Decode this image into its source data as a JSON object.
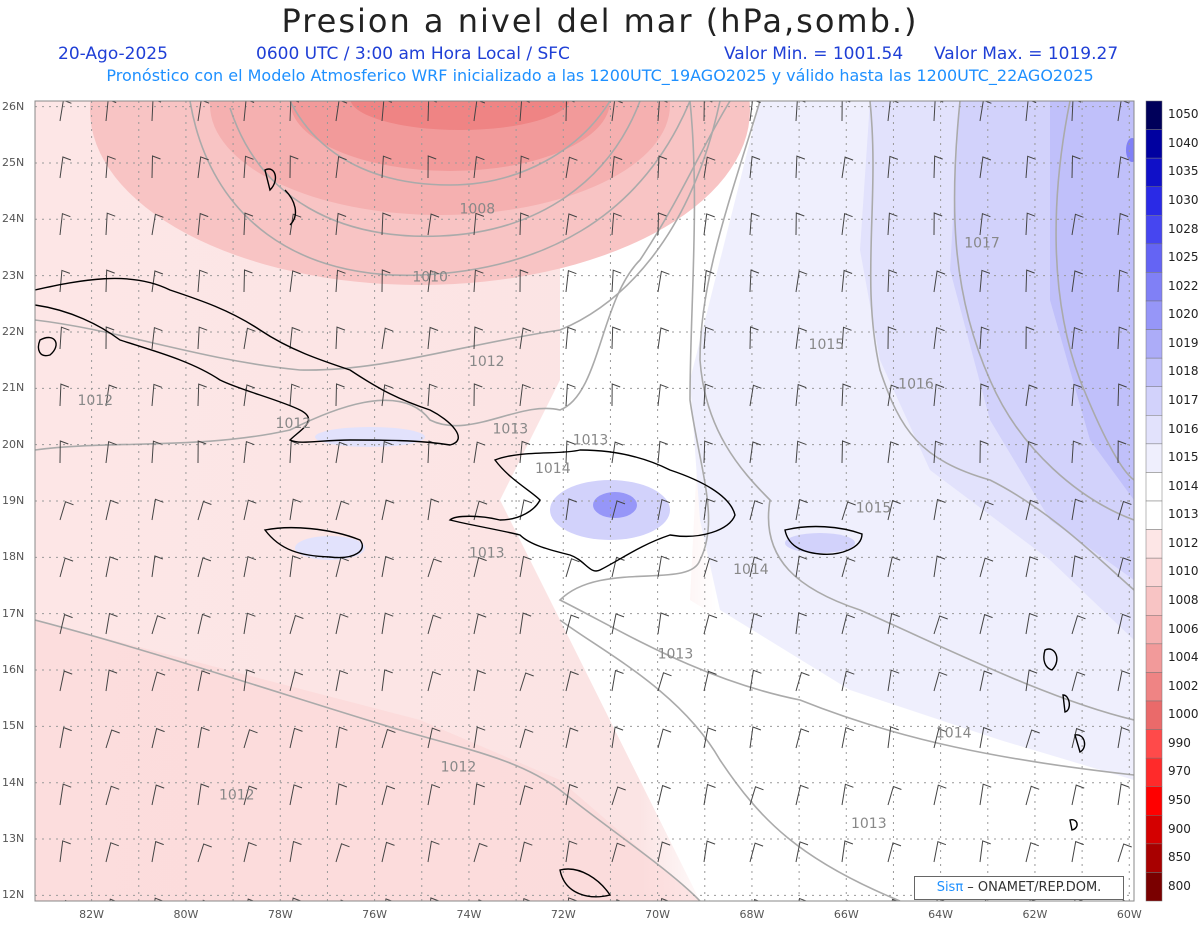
{
  "header": {
    "title": "Presion a nivel del mar (hPa,somb.)",
    "date": "20-Ago-2025",
    "time": "0600 UTC / 3:00 am Hora Local / SFC",
    "min": "Valor Min. = 1001.54",
    "max": "Valor Max. = 1019.27",
    "model_line": "Pronóstico con el Modelo Atmosferico WRF inicializado a las 1200UTC_19AGO2025 y válido hasta las  1200UTC_22AGO2025"
  },
  "axes": {
    "lat_labels": [
      "26N",
      "25N",
      "24N",
      "23N",
      "22N",
      "21N",
      "20N",
      "19N",
      "18N",
      "17N",
      "16N",
      "15N",
      "14N",
      "13N",
      "12N"
    ],
    "lon_labels": [
      "82W",
      "80W",
      "78W",
      "76W",
      "74W",
      "72W",
      "70W",
      "68W",
      "66W",
      "64W",
      "62W",
      "60W"
    ]
  },
  "contour_labels": [
    {
      "text": "1008",
      "lon": -74.2,
      "lat": 24.1
    },
    {
      "text": "1010",
      "lon": -75.2,
      "lat": 22.9
    },
    {
      "text": "1012",
      "lon": -74.0,
      "lat": 21.4
    },
    {
      "text": "1012",
      "lon": -82.3,
      "lat": 20.7
    },
    {
      "text": "1012",
      "lon": -78.1,
      "lat": 20.3
    },
    {
      "text": "1013",
      "lon": -71.8,
      "lat": 20.0
    },
    {
      "text": "1014",
      "lon": -72.6,
      "lat": 19.5
    },
    {
      "text": "1013",
      "lon": -74.0,
      "lat": 18.0
    },
    {
      "text": "1013",
      "lon": -73.5,
      "lat": 20.2
    },
    {
      "text": "1014",
      "lon": -68.4,
      "lat": 17.7
    },
    {
      "text": "1015",
      "lon": -66.8,
      "lat": 21.7
    },
    {
      "text": "1016",
      "lon": -64.9,
      "lat": 21.0
    },
    {
      "text": "1015",
      "lon": -65.8,
      "lat": 18.8
    },
    {
      "text": "1017",
      "lon": -63.5,
      "lat": 23.5
    },
    {
      "text": "1013",
      "lon": -70.0,
      "lat": 16.2
    },
    {
      "text": "1014",
      "lon": -64.1,
      "lat": 14.8
    },
    {
      "text": "1012",
      "lon": -74.6,
      "lat": 14.2
    },
    {
      "text": "1012",
      "lon": -79.3,
      "lat": 13.7
    },
    {
      "text": "1013",
      "lon": -65.9,
      "lat": 13.2
    }
  ],
  "colorbar": {
    "labels": [
      "1050",
      "1040",
      "1035",
      "1030",
      "1028",
      "1025",
      "1022",
      "1020",
      "1019",
      "1018",
      "1017",
      "1016",
      "1015",
      "1014",
      "1013",
      "1012",
      "1010",
      "1008",
      "1006",
      "1004",
      "1002",
      "1000",
      "990",
      "970",
      "950",
      "900",
      "850",
      "800"
    ],
    "colors": [
      "#00005a",
      "#0000a0",
      "#1010c8",
      "#2a2ae6",
      "#4646f0",
      "#6464f4",
      "#8080f6",
      "#9696f8",
      "#acacf8",
      "#c0c0fa",
      "#d2d2fb",
      "#e2e2fc",
      "#efeffd",
      "#ffffff",
      "#ffffff",
      "#fde6e6",
      "#fbd6d6",
      "#f8c4c4",
      "#f5b0b0",
      "#f29a9a",
      "#ef8484",
      "#ea6a6a",
      "#ff4a4a",
      "#ff2a2a",
      "#ff0000",
      "#d40000",
      "#a80000",
      "#7a0000"
    ]
  },
  "credit": {
    "brand": "Sisπ",
    "text": " – ONAMET/REP.DOM."
  }
}
